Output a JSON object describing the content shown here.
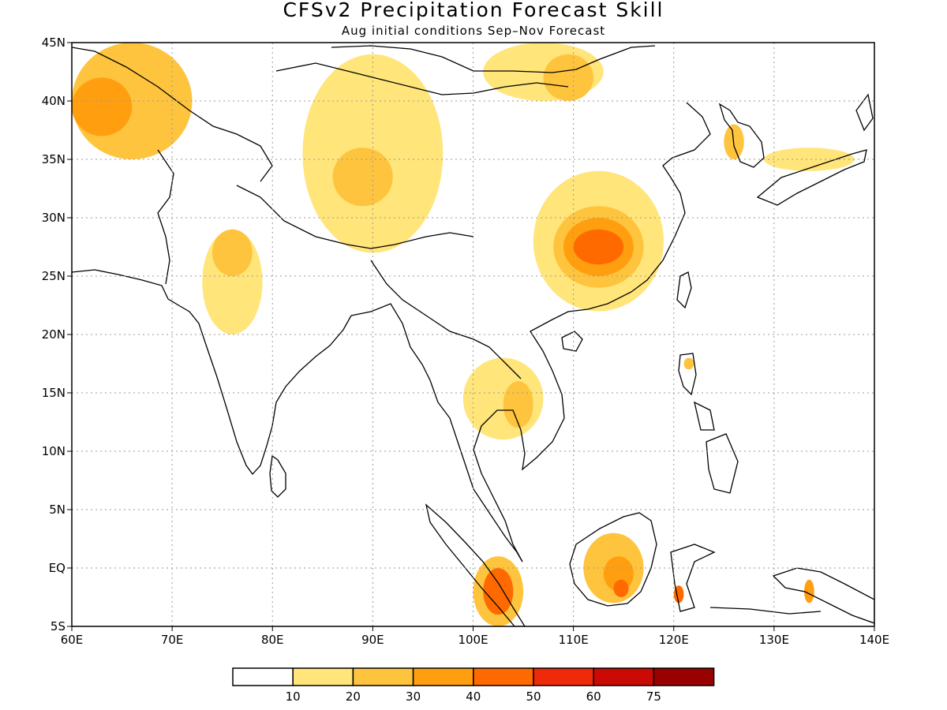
{
  "title": "CFSv2 Precipitation Forecast Skill",
  "subtitle": "Aug initial conditions  Sep–Nov Forecast",
  "map": {
    "lon_range": [
      60,
      140
    ],
    "lat_range": [
      -5,
      45
    ],
    "lon_ticks": [
      "60E",
      "70E",
      "80E",
      "90E",
      "100E",
      "110E",
      "120E",
      "130E",
      "140E"
    ],
    "lat_ticks": [
      "45N",
      "40N",
      "35N",
      "30N",
      "25N",
      "20N",
      "15N",
      "10N",
      "5N",
      "EQ",
      "5S"
    ],
    "grid": "dotted"
  },
  "colorbar": {
    "labels": [
      "10",
      "20",
      "30",
      "40",
      "50",
      "60",
      "75"
    ],
    "colors": [
      "#ffffff",
      "#ffe57a",
      "#ffc43d",
      "#ff9f0f",
      "#ff6a00",
      "#ee2a0b",
      "#cc0a05",
      "#990000"
    ]
  },
  "regions": [
    {
      "name": "central-asia",
      "level": 2,
      "lon": [
        60,
        72
      ],
      "lat": [
        35,
        45
      ]
    },
    {
      "name": "central-asia-core",
      "level": 3,
      "lon": [
        60,
        66
      ],
      "lat": [
        37,
        42
      ]
    },
    {
      "name": "tibet",
      "level": 1,
      "lon": [
        83,
        97
      ],
      "lat": [
        27,
        44
      ]
    },
    {
      "name": "tibet-core",
      "level": 2,
      "lon": [
        86,
        92
      ],
      "lat": [
        31,
        36
      ]
    },
    {
      "name": "mongolia",
      "level": 1,
      "lon": [
        101,
        113
      ],
      "lat": [
        40,
        45
      ]
    },
    {
      "name": "mongolia-core",
      "level": 2,
      "lon": [
        107,
        112
      ],
      "lat": [
        40,
        44
      ]
    },
    {
      "name": "pakistan",
      "level": 1,
      "lon": [
        73,
        79
      ],
      "lat": [
        20,
        29
      ]
    },
    {
      "name": "pakistan-core",
      "level": 2,
      "lon": [
        74,
        78
      ],
      "lat": [
        25,
        29
      ]
    },
    {
      "name": "south-china",
      "level": 1,
      "lon": [
        106,
        119
      ],
      "lat": [
        22,
        34
      ]
    },
    {
      "name": "south-china-mid",
      "level": 2,
      "lon": [
        108,
        117
      ],
      "lat": [
        24,
        31
      ]
    },
    {
      "name": "south-china-core",
      "level": 3,
      "lon": [
        109,
        116
      ],
      "lat": [
        25,
        30
      ]
    },
    {
      "name": "south-china-peak",
      "level": 4,
      "lon": [
        110,
        115
      ],
      "lat": [
        26,
        29
      ]
    },
    {
      "name": "indochina",
      "level": 1,
      "lon": [
        99,
        107
      ],
      "lat": [
        11,
        18
      ]
    },
    {
      "name": "indochina-core",
      "level": 2,
      "lon": [
        103,
        106
      ],
      "lat": [
        12,
        16
      ]
    },
    {
      "name": "sumatra",
      "level": 2,
      "lon": [
        100,
        105
      ],
      "lat": [
        -5,
        1
      ]
    },
    {
      "name": "sumatra-core",
      "level": 4,
      "lon": [
        101,
        104
      ],
      "lat": [
        -4,
        0
      ]
    },
    {
      "name": "borneo",
      "level": 2,
      "lon": [
        111,
        117
      ],
      "lat": [
        -3,
        3
      ]
    },
    {
      "name": "borneo-core",
      "level": 3,
      "lon": [
        113,
        116
      ],
      "lat": [
        -2,
        1
      ]
    },
    {
      "name": "borneo-peak",
      "level": 4,
      "lon": [
        114,
        115.5
      ],
      "lat": [
        -2.5,
        -1
      ]
    },
    {
      "name": "korea",
      "level": 2,
      "lon": [
        125,
        127
      ],
      "lat": [
        35,
        38
      ]
    },
    {
      "name": "japan",
      "level": 1,
      "lon": [
        129,
        138
      ],
      "lat": [
        34,
        36
      ]
    },
    {
      "name": "new-guinea",
      "level": 3,
      "lon": [
        133,
        134
      ],
      "lat": [
        -3,
        -1
      ]
    },
    {
      "name": "sulawesi",
      "level": 4,
      "lon": [
        120,
        121
      ],
      "lat": [
        -3,
        -1.5
      ]
    },
    {
      "name": "luzon",
      "level": 2,
      "lon": [
        121,
        122
      ],
      "lat": [
        17,
        18
      ]
    }
  ]
}
